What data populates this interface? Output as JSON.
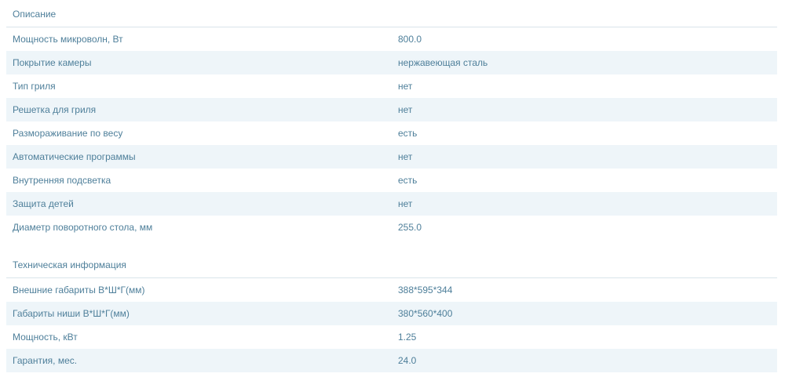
{
  "sections": [
    {
      "title": "Описание",
      "rows": [
        {
          "name": "Мощность микроволн, Вт",
          "value": "800.0"
        },
        {
          "name": "Покрытие камеры",
          "value": "нержавеющая сталь"
        },
        {
          "name": "Тип гриля",
          "value": "нет"
        },
        {
          "name": "Решетка для гриля",
          "value": "нет"
        },
        {
          "name": "Размораживание по весу",
          "value": "есть"
        },
        {
          "name": "Автоматические программы",
          "value": "нет"
        },
        {
          "name": "Внутренняя подсветка",
          "value": "есть"
        },
        {
          "name": "Защита детей",
          "value": "нет"
        },
        {
          "name": "Диаметр поворотного стола, мм",
          "value": "255.0"
        }
      ]
    },
    {
      "title": "Техническая информация",
      "rows": [
        {
          "name": "Внешние габариты В*Ш*Г(мм)",
          "value": "388*595*344"
        },
        {
          "name": "Габариты ниши В*Ш*Г(мм)",
          "value": "380*560*400"
        },
        {
          "name": "Мощность, кВт",
          "value": "1.25"
        },
        {
          "name": "Гарантия, мес.",
          "value": "24.0"
        }
      ]
    }
  ]
}
